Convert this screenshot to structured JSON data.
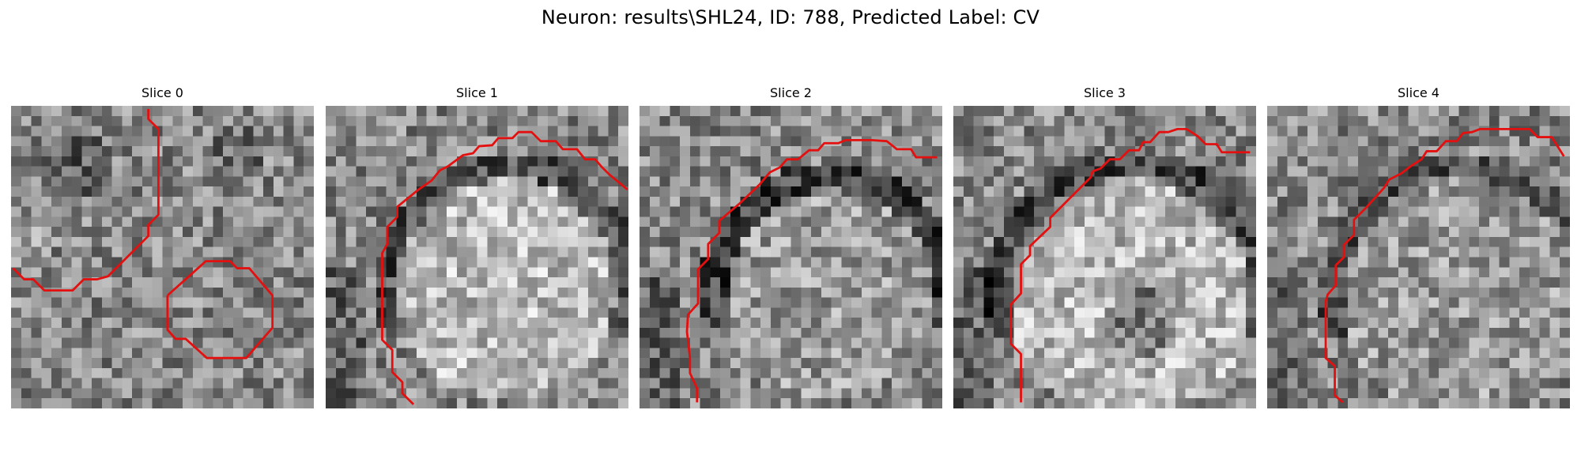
{
  "figure": {
    "title": "Neuron: results\\SHL24, ID: 788, Predicted Label: CV",
    "colormap": "gray",
    "contour_color": "#e41010",
    "grid_size": 30
  },
  "panels": [
    {
      "title": "Slice 0",
      "style": "spots",
      "contours": [
        [
          [
            13.6,
            0.3
          ],
          [
            13.6,
            1.3
          ],
          [
            14.6,
            2.3
          ],
          [
            14.6,
            10.8
          ],
          [
            13.6,
            11.8
          ],
          [
            13.6,
            12.9
          ],
          [
            11.6,
            14.9
          ],
          [
            9.6,
            16.9
          ],
          [
            8.5,
            17.2
          ],
          [
            7.2,
            17.2
          ],
          [
            6.1,
            18.3
          ],
          [
            3.3,
            18.3
          ],
          [
            2.2,
            17.2
          ],
          [
            1.3,
            17.2
          ],
          [
            0.2,
            16.1
          ]
        ],
        [
          [
            15.5,
            18.8
          ],
          [
            19.3,
            15.4
          ],
          [
            21.7,
            15.4
          ],
          [
            22.4,
            16.1
          ],
          [
            23.6,
            16.1
          ],
          [
            25.9,
            18.8
          ],
          [
            25.9,
            22.0
          ],
          [
            23.3,
            25.0
          ],
          [
            19.4,
            25.0
          ],
          [
            17.3,
            23.1
          ],
          [
            16.3,
            23.1
          ],
          [
            15.5,
            22.2
          ],
          [
            15.5,
            18.8
          ]
        ]
      ]
    },
    {
      "title": "Slice 1",
      "style": "cell",
      "cell": {
        "cx": 17.5,
        "cy": 17.5,
        "r": 11.0,
        "strength": 0.95,
        "dark_ring": 0.8
      },
      "contours": [
        [
          [
            8.7,
            29.6
          ],
          [
            7.6,
            28.5
          ],
          [
            7.6,
            27.4
          ],
          [
            6.6,
            26.4
          ],
          [
            6.6,
            24.2
          ],
          [
            5.6,
            23.2
          ],
          [
            5.6,
            14.6
          ],
          [
            6.1,
            13.7
          ],
          [
            6.1,
            12.0
          ],
          [
            7.1,
            11.0
          ],
          [
            7.1,
            10.0
          ],
          [
            9.2,
            8.3
          ],
          [
            10.5,
            7.4
          ],
          [
            11.3,
            6.4
          ],
          [
            12.1,
            6.0
          ],
          [
            13.6,
            4.9
          ],
          [
            14.6,
            4.7
          ],
          [
            15.2,
            4.0
          ],
          [
            16.5,
            3.9
          ],
          [
            17.1,
            3.2
          ],
          [
            18.5,
            3.2
          ],
          [
            19.1,
            2.6
          ],
          [
            20.4,
            2.6
          ],
          [
            21.3,
            3.5
          ],
          [
            22.8,
            3.5
          ],
          [
            23.5,
            4.3
          ],
          [
            24.9,
            4.3
          ],
          [
            25.7,
            5.3
          ],
          [
            26.7,
            5.3
          ],
          [
            27.3,
            6.0
          ],
          [
            28.1,
            6.8
          ],
          [
            29.9,
            8.3
          ]
        ]
      ]
    },
    {
      "title": "Slice 2",
      "style": "cell",
      "cell": {
        "cx": 18.5,
        "cy": 18.0,
        "r": 10.5,
        "strength": 0.35,
        "dark_ring": 1.0
      },
      "contours": [
        [
          [
            5.7,
            29.4
          ],
          [
            5.7,
            28.0
          ],
          [
            5.0,
            26.5
          ],
          [
            5.0,
            25.0
          ],
          [
            4.7,
            22.4
          ],
          [
            4.8,
            20.7
          ],
          [
            5.8,
            19.6
          ],
          [
            5.8,
            16.2
          ],
          [
            6.8,
            15.2
          ],
          [
            6.8,
            13.7
          ],
          [
            7.9,
            12.6
          ],
          [
            7.9,
            11.4
          ],
          [
            9.9,
            9.7
          ],
          [
            11.9,
            7.8
          ],
          [
            12.9,
            6.6
          ],
          [
            13.9,
            6.1
          ],
          [
            14.6,
            5.3
          ],
          [
            15.7,
            5.3
          ],
          [
            16.8,
            4.4
          ],
          [
            17.7,
            4.4
          ],
          [
            18.3,
            3.7
          ],
          [
            19.7,
            3.7
          ],
          [
            20.4,
            3.4
          ],
          [
            22.2,
            3.4
          ],
          [
            23.0,
            3.4
          ],
          [
            24.5,
            3.5
          ],
          [
            25.5,
            4.3
          ],
          [
            26.9,
            4.3
          ],
          [
            27.4,
            5.1
          ],
          [
            29.5,
            5.1
          ]
        ]
      ]
    },
    {
      "title": "Slice 3",
      "style": "cell",
      "cell": {
        "cx": 17.0,
        "cy": 18.5,
        "r": 12.0,
        "strength": 0.9,
        "dark_ring": 0.9,
        "inner_dark": 0.9
      },
      "contours": [
        [
          [
            6.7,
            29.4
          ],
          [
            6.7,
            24.6
          ],
          [
            5.7,
            23.6
          ],
          [
            5.7,
            19.7
          ],
          [
            6.7,
            18.6
          ],
          [
            6.7,
            15.7
          ],
          [
            7.6,
            14.8
          ],
          [
            7.6,
            13.9
          ],
          [
            9.6,
            12.0
          ],
          [
            9.6,
            11.1
          ],
          [
            11.6,
            9.1
          ],
          [
            13.6,
            7.1
          ],
          [
            13.8,
            6.5
          ],
          [
            14.6,
            6.2
          ],
          [
            15.5,
            5.3
          ],
          [
            16.5,
            5.3
          ],
          [
            17.4,
            4.4
          ],
          [
            18.4,
            4.4
          ],
          [
            18.8,
            3.6
          ],
          [
            19.5,
            3.6
          ],
          [
            20.4,
            2.6
          ],
          [
            21.3,
            2.6
          ],
          [
            22.2,
            2.3
          ],
          [
            23.1,
            2.3
          ],
          [
            24.2,
            3.0
          ],
          [
            25.0,
            3.8
          ],
          [
            26.1,
            3.8
          ],
          [
            26.6,
            4.6
          ],
          [
            29.4,
            4.6
          ]
        ]
      ]
    },
    {
      "title": "Slice 4",
      "style": "cell",
      "cell": {
        "cx": 19.0,
        "cy": 18.5,
        "r": 12.0,
        "strength": 0.35,
        "dark_ring": 0.7
      },
      "contours": [
        [
          [
            7.5,
            29.4
          ],
          [
            6.7,
            28.7
          ],
          [
            6.7,
            25.8
          ],
          [
            5.8,
            25.0
          ],
          [
            5.8,
            19.4
          ],
          [
            6.0,
            18.7
          ],
          [
            6.8,
            17.8
          ],
          [
            6.8,
            15.8
          ],
          [
            7.6,
            15.0
          ],
          [
            7.6,
            13.8
          ],
          [
            8.6,
            12.8
          ],
          [
            8.6,
            11.3
          ],
          [
            9.8,
            10.1
          ],
          [
            10.7,
            9.1
          ],
          [
            11.6,
            8.1
          ],
          [
            12.1,
            7.3
          ],
          [
            13.3,
            6.7
          ],
          [
            14.2,
            6.0
          ],
          [
            15.3,
            5.3
          ],
          [
            15.8,
            4.5
          ],
          [
            16.8,
            4.5
          ],
          [
            17.7,
            3.5
          ],
          [
            18.8,
            3.5
          ],
          [
            19.4,
            2.7
          ],
          [
            20.3,
            2.6
          ],
          [
            21.1,
            2.3
          ],
          [
            22.4,
            2.3
          ],
          [
            24.0,
            2.3
          ],
          [
            26.0,
            2.3
          ],
          [
            26.8,
            3.1
          ],
          [
            28.2,
            3.1
          ],
          [
            29.4,
            5.0
          ]
        ]
      ]
    }
  ]
}
